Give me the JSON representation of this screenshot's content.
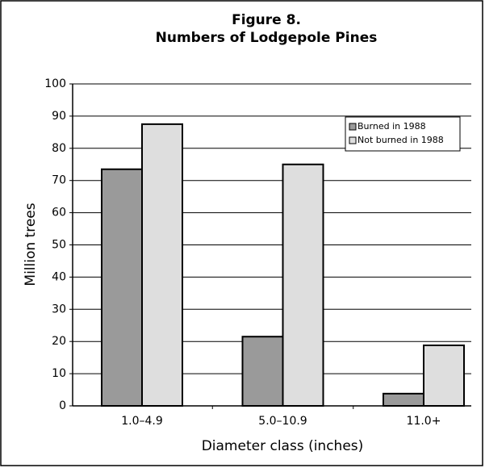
{
  "chart_data": {
    "type": "bar",
    "title": "Figure 8.",
    "subtitle": "Numbers of Lodgepole Pines",
    "x_label": "Diameter class (inches)",
    "y_label": "Million trees",
    "categories": [
      "1.0–4.9",
      "5.0–10.9",
      "11.0+"
    ],
    "series": [
      {
        "name": "Burned in 1988",
        "color": "#9a9a9a",
        "values": [
          73.5,
          21.5,
          3.8
        ]
      },
      {
        "name": "Not burned in 1988",
        "color": "#dedede",
        "values": [
          87.5,
          75,
          18.8
        ]
      }
    ],
    "ylim": [
      0,
      100
    ],
    "yticks": [
      0,
      10,
      20,
      30,
      40,
      50,
      60,
      70,
      80,
      90,
      100
    ],
    "grid": true,
    "legend": "upper right"
  }
}
